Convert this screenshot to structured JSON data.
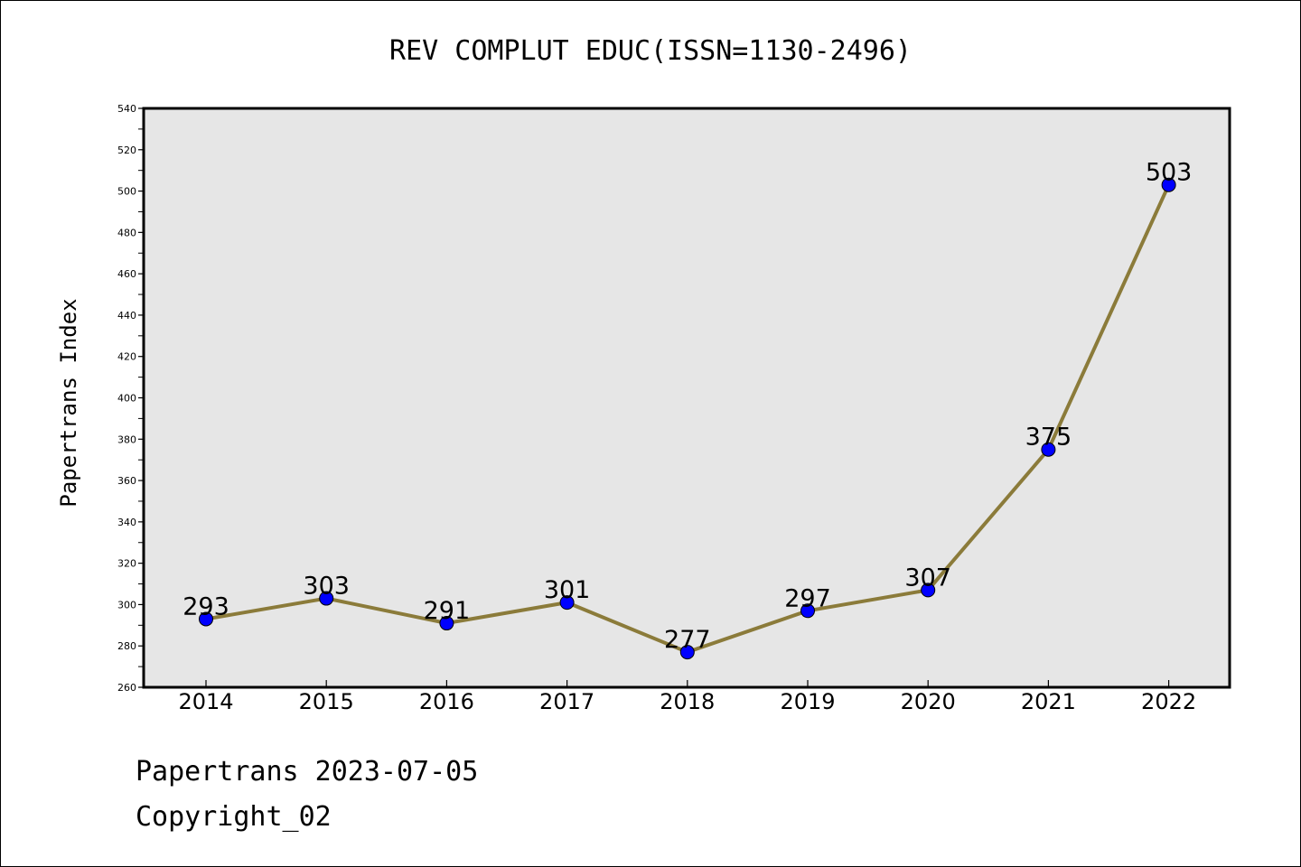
{
  "chart_data": {
    "type": "line",
    "title": "REV COMPLUT EDUC(ISSN=1130-2496)",
    "ylabel": "Papertrans Index",
    "xlabel": "",
    "categories": [
      "2014",
      "2015",
      "2016",
      "2017",
      "2018",
      "2019",
      "2020",
      "2021",
      "2022"
    ],
    "series": [
      {
        "values": [
          293,
          303,
          291,
          301,
          277,
          297,
          307,
          375,
          503
        ]
      }
    ],
    "ylim": [
      260,
      540
    ],
    "yticks": [
      260,
      280,
      300,
      320,
      340,
      360,
      380,
      400,
      420,
      440,
      460,
      480,
      500,
      520,
      540
    ],
    "grid": false,
    "data_labels": true,
    "colors": {
      "line": "#8b7b3a",
      "marker": "#0000ff",
      "plot_background": "#e6e6e6"
    }
  },
  "footer": {
    "line1": "Papertrans 2023-07-05",
    "line2": "Copyright_02"
  }
}
